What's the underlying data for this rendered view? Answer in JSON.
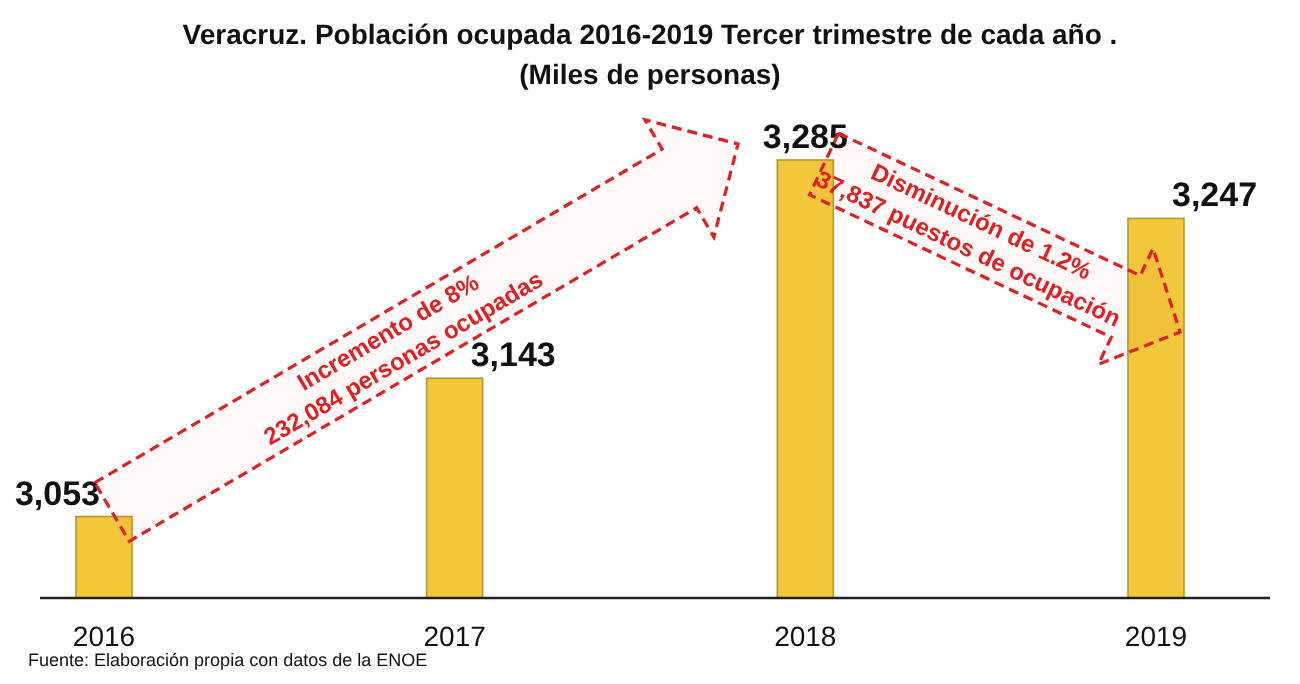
{
  "chart_data": {
    "type": "bar",
    "title": "Veracruz. Población ocupada 2016-2019 Tercer trimestre de cada año .",
    "subtitle": "(Miles de personas)",
    "categories": [
      "2016",
      "2017",
      "2018",
      "2019"
    ],
    "values": [
      3053,
      3143,
      3285,
      3247
    ],
    "color": "#f2c73a",
    "ylim": [
      3000,
      3285
    ],
    "value_labels": [
      "3,053",
      "3,143",
      "3,285",
      "3,247"
    ],
    "tick_labels": "x",
    "annotations": [
      "Incremento de 8%\n232,084 personas ocupadas",
      "Disminución de 1.2%\n37,837 puestos de ocupación",
      "Fuente: Elaboración propia con datos de la ENOE"
    ]
  }
}
